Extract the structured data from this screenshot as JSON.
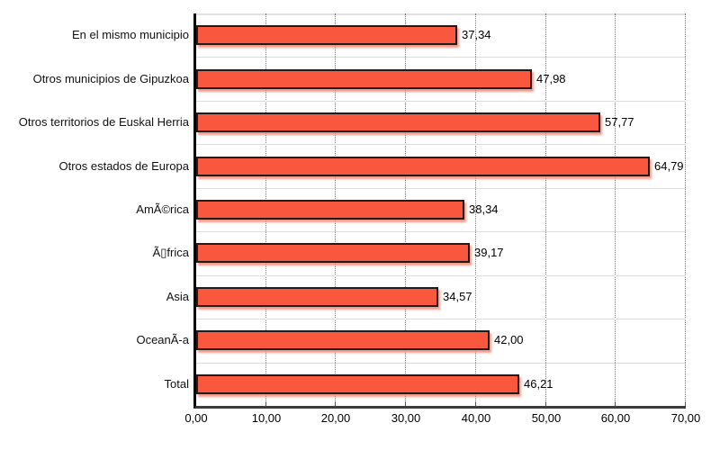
{
  "chart_data": {
    "type": "bar",
    "orientation": "horizontal",
    "title": "",
    "legend": "none",
    "grid": "vertical-dotted",
    "xlim": [
      0,
      70
    ],
    "x_tick_labels": [
      "0,00",
      "10,00",
      "20,00",
      "30,00",
      "40,00",
      "50,00",
      "60,00",
      "70,00"
    ],
    "x_tick_values": [
      0,
      10,
      20,
      30,
      40,
      50,
      60,
      70
    ],
    "categories": [
      "En el mismo municipio",
      "Otros municipios de Gipuzkoa",
      "Otros territorios de Euskal Herria",
      "Otros estados de Europa",
      "AmÃ©rica",
      "Ã▯frica",
      "Asia",
      "OceanÃ-a",
      "Total"
    ],
    "values": [
      37.34,
      47.98,
      57.77,
      64.79,
      38.34,
      39.17,
      34.57,
      42.0,
      46.21
    ],
    "value_labels": [
      "37,34",
      "47,98",
      "57,77",
      "64,79",
      "38,34",
      "39,17",
      "34,57",
      "42,00",
      "46,21"
    ],
    "colors": {
      "bar_fill": "#f9573e",
      "bar_border": "#1c1c1c",
      "bar_shadow": "#f68773",
      "gridline": "#7d7d7d",
      "row_boundary": "#dcdcdc",
      "axis_left": "#000000",
      "axis_bottom": "#3c3c3c",
      "text": "#000000"
    }
  }
}
